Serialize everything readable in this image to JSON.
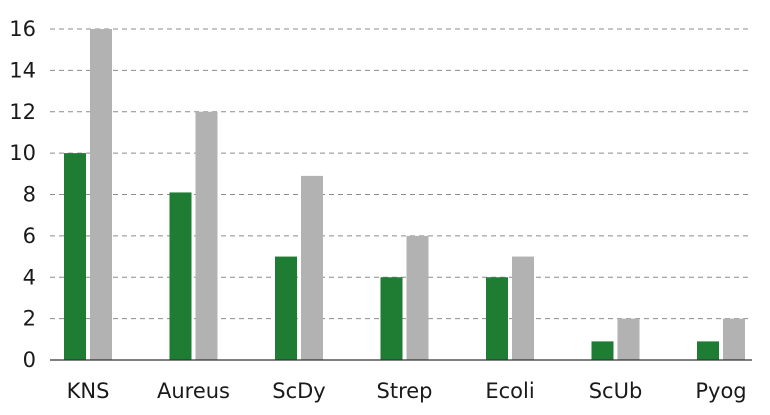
{
  "chart_data": {
    "type": "bar",
    "categories": [
      "KNS",
      "Aureus",
      "ScDy",
      "Strep",
      "Ecoli",
      "ScUb",
      "Pyog"
    ],
    "series": [
      {
        "values": [
          10,
          8.1,
          5,
          4,
          4,
          0.9,
          0.9
        ],
        "color": "#1e7d32"
      },
      {
        "values": [
          16,
          12,
          8.9,
          6,
          5,
          2,
          2
        ],
        "color": "#b2b2b2"
      }
    ],
    "ylim": [
      0,
      16
    ],
    "yticks": [
      0,
      2,
      4,
      6,
      8,
      10,
      12,
      14,
      16
    ],
    "grid": true,
    "legend": "none"
  }
}
